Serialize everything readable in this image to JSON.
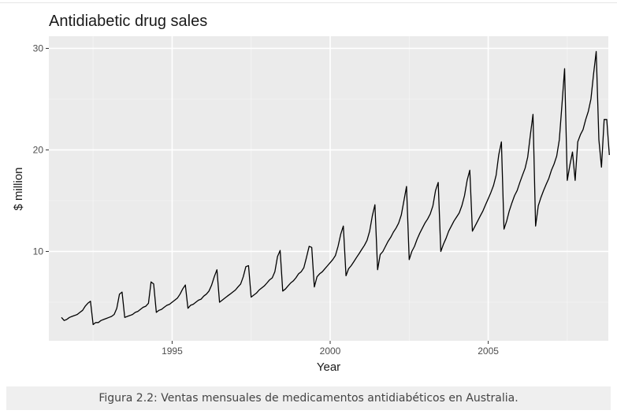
{
  "caption": "Figura 2.2: Ventas mensuales de medicamentos antidiabéticos en Australia.",
  "chart_data": {
    "type": "line",
    "title": "Antidiabetic drug sales",
    "xlabel": "Year",
    "ylabel": "$ million",
    "xlim": [
      1991.1,
      2008.8
    ],
    "ylim": [
      1.2,
      31.2
    ],
    "x_ticks": [
      1995,
      2000,
      2005
    ],
    "y_ticks": [
      10,
      20,
      30
    ],
    "grid": true,
    "colors": {
      "panel": "#ebebeb",
      "grid_major": "#ffffff",
      "grid_minor": "#f5f5f5",
      "line": "#000000"
    },
    "series": [
      {
        "x_start": 1991.5,
        "step": 0.0833333,
        "values": [
          3.5,
          3.2,
          3.3,
          3.5,
          3.6,
          3.7,
          3.8,
          4.0,
          4.2,
          4.6,
          4.9,
          5.1,
          2.8,
          3.0,
          3.0,
          3.2,
          3.3,
          3.4,
          3.5,
          3.6,
          3.8,
          4.4,
          5.8,
          6.0,
          3.5,
          3.6,
          3.7,
          3.8,
          4.0,
          4.1,
          4.3,
          4.5,
          4.6,
          4.9,
          7.0,
          6.8,
          4.0,
          4.2,
          4.3,
          4.5,
          4.7,
          4.8,
          5.0,
          5.2,
          5.4,
          5.8,
          6.3,
          6.7,
          4.4,
          4.7,
          4.8,
          5.0,
          5.2,
          5.3,
          5.6,
          5.8,
          6.1,
          6.7,
          7.5,
          8.2,
          5.0,
          5.2,
          5.4,
          5.6,
          5.8,
          6.0,
          6.2,
          6.5,
          6.8,
          7.5,
          8.5,
          8.6,
          5.5,
          5.7,
          5.9,
          6.2,
          6.4,
          6.6,
          6.9,
          7.2,
          7.4,
          8.0,
          9.5,
          10.1,
          6.1,
          6.3,
          6.6,
          6.9,
          7.1,
          7.4,
          7.8,
          8.0,
          8.4,
          9.4,
          10.5,
          10.4,
          6.5,
          7.5,
          7.8,
          8.0,
          8.3,
          8.6,
          8.9,
          9.2,
          9.6,
          10.5,
          11.7,
          12.5,
          7.6,
          8.3,
          8.6,
          9.0,
          9.4,
          9.8,
          10.2,
          10.6,
          11.1,
          12.0,
          13.5,
          14.6,
          8.2,
          9.7,
          10.0,
          10.5,
          11.0,
          11.4,
          11.9,
          12.3,
          12.8,
          13.6,
          15.0,
          16.4,
          9.2,
          10.0,
          10.5,
          11.2,
          11.8,
          12.3,
          12.8,
          13.2,
          13.7,
          14.5,
          16.0,
          16.8,
          10.0,
          10.7,
          11.3,
          12.0,
          12.5,
          13.0,
          13.4,
          13.8,
          14.5,
          15.5,
          17.0,
          18.0,
          12.0,
          12.5,
          13.0,
          13.5,
          14.0,
          14.6,
          15.2,
          15.8,
          16.5,
          17.5,
          19.5,
          20.8,
          12.2,
          13.0,
          14.0,
          14.8,
          15.5,
          16.0,
          16.8,
          17.5,
          18.2,
          19.3,
          21.5,
          23.5,
          12.5,
          14.5,
          15.3,
          16.0,
          16.6,
          17.2,
          18.0,
          18.6,
          19.4,
          21.0,
          24.5,
          28.0,
          17.0,
          18.5,
          19.8,
          17.0,
          20.8,
          21.5,
          22.0,
          23.0,
          23.8,
          25.0,
          27.5,
          29.7,
          21.0,
          18.3,
          23.0,
          23.0,
          19.5
        ]
      }
    ]
  }
}
